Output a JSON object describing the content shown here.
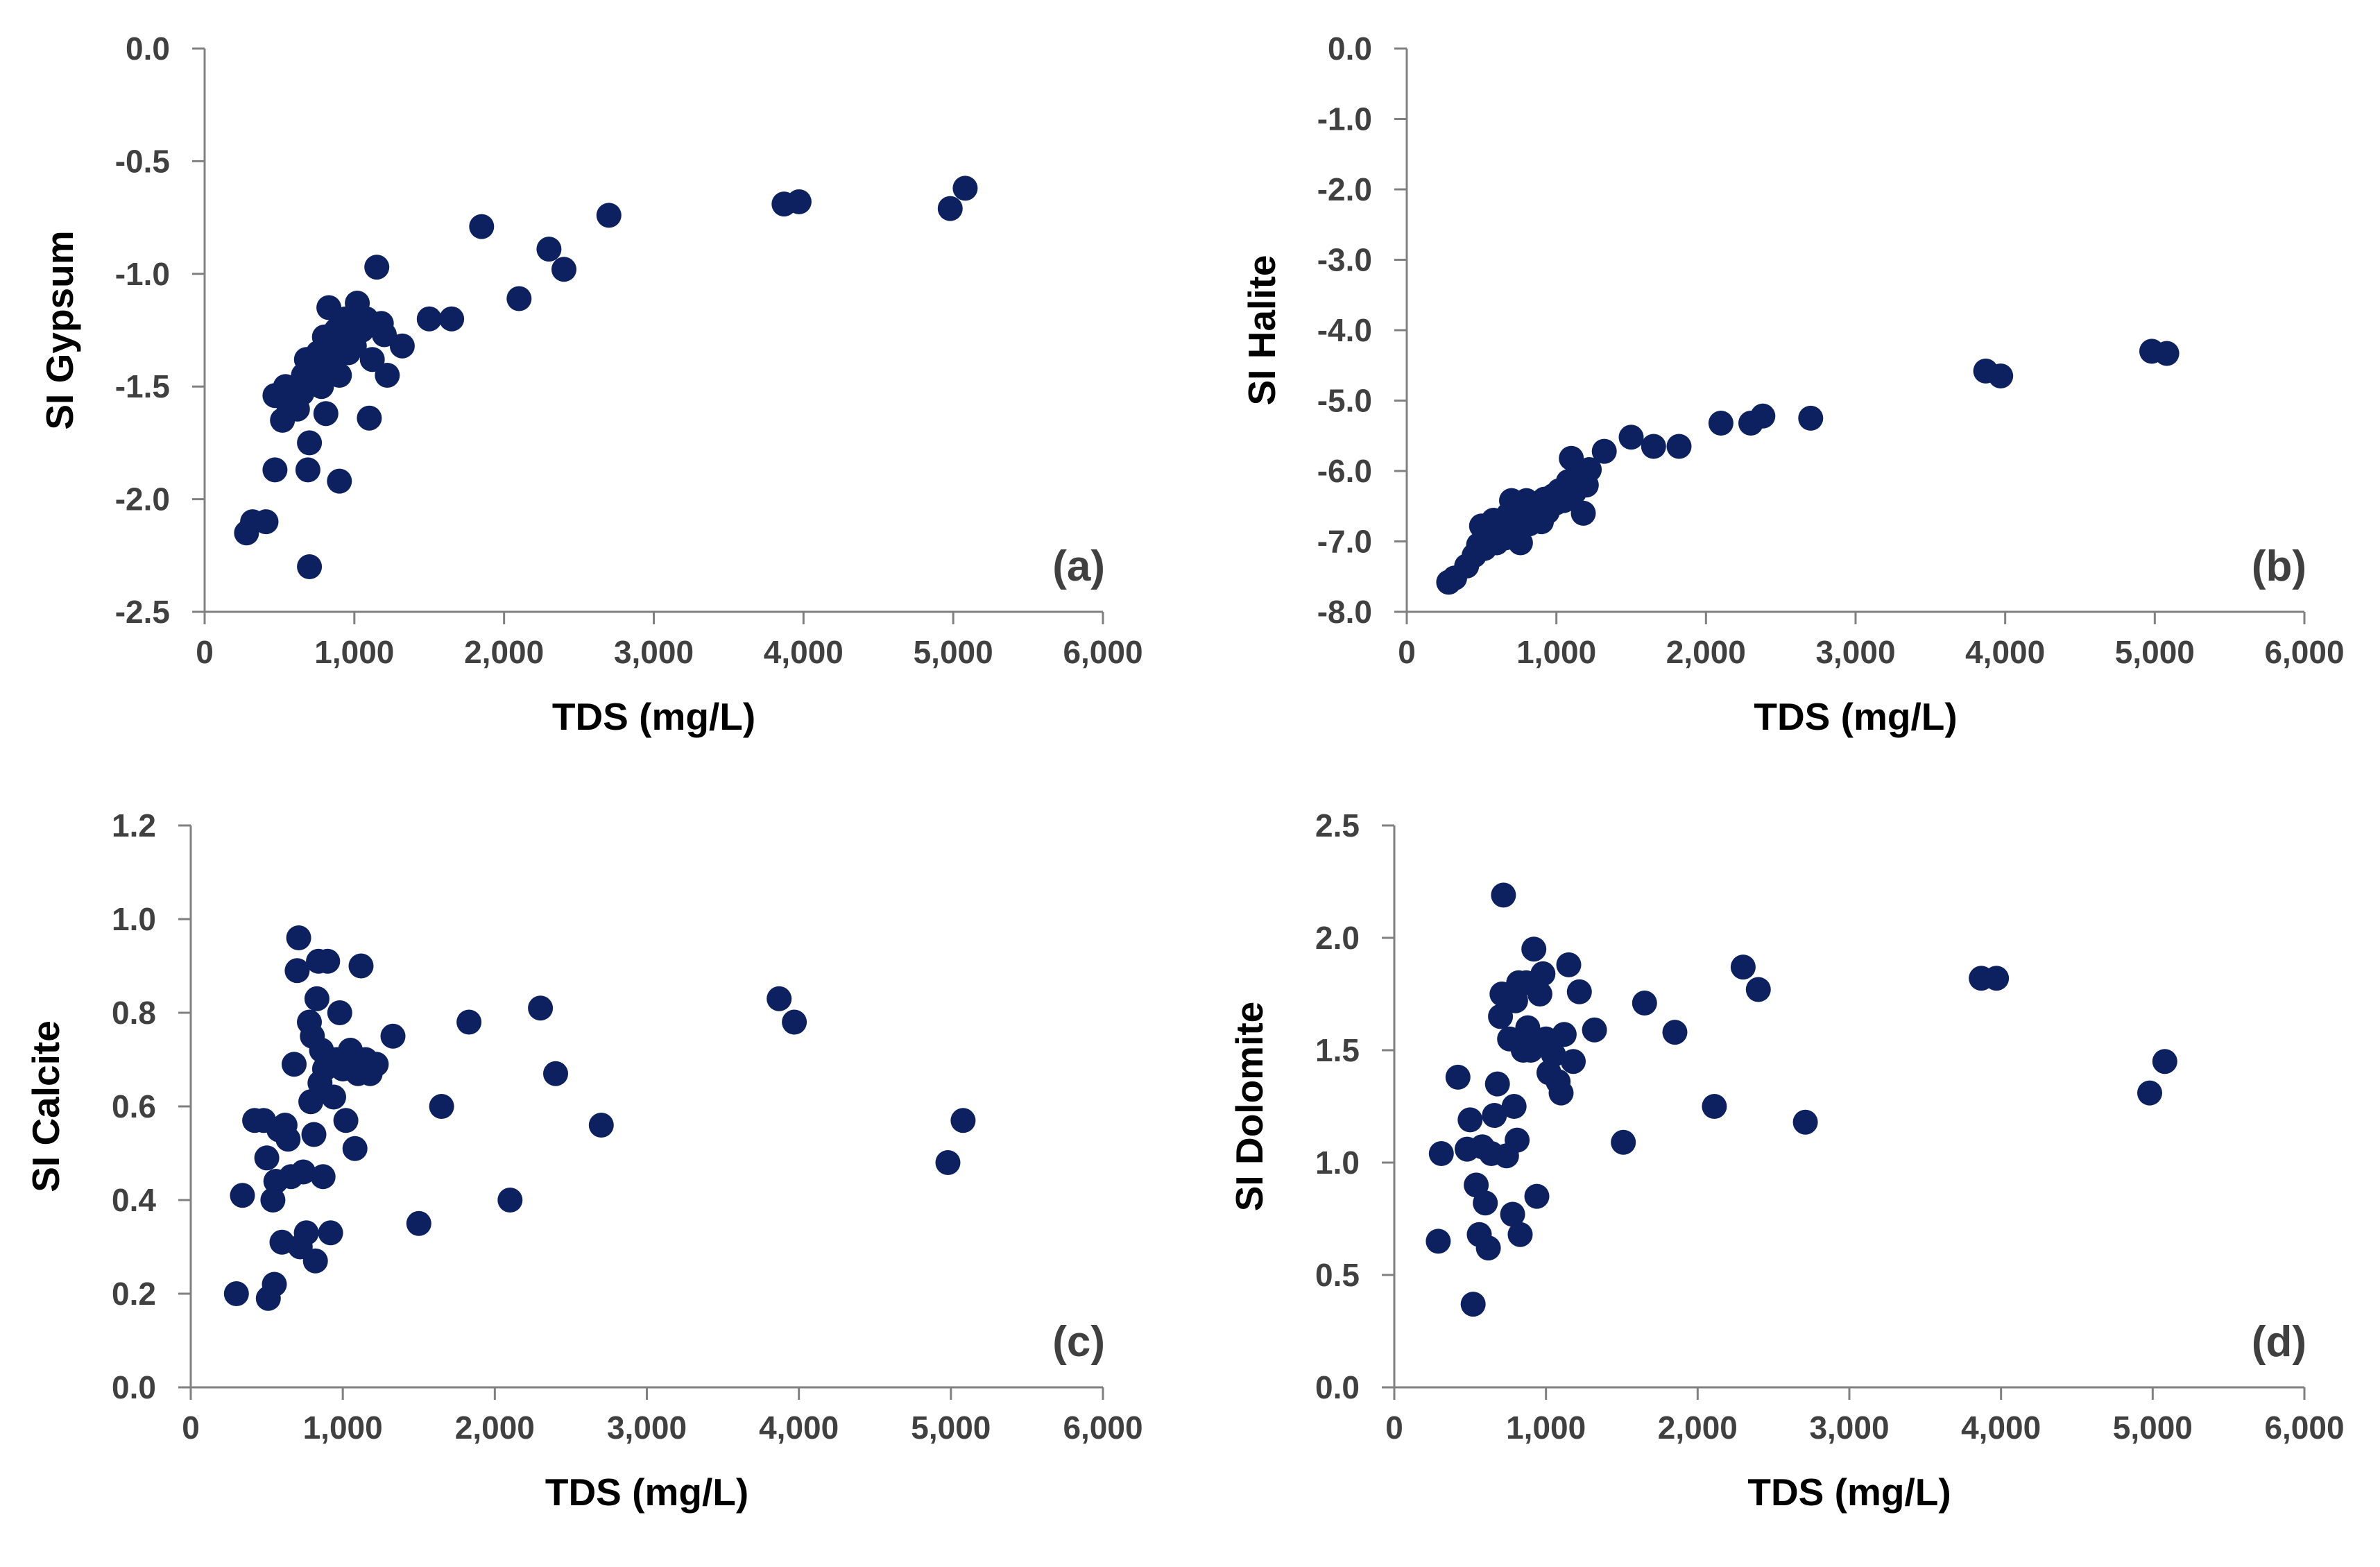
{
  "chart_data": [
    {
      "type": "scatter",
      "panel_label": "(a)",
      "xlabel": "TDS (mg/L)",
      "ylabel": "SI Gypsum",
      "xlim": [
        0,
        6000
      ],
      "ylim": [
        -2.5,
        0.0
      ],
      "xticks": [
        0,
        1000,
        2000,
        3000,
        4000,
        5000,
        6000
      ],
      "xtick_labels": [
        "0",
        "1,000",
        "2,000",
        "3,000",
        "4,000",
        "5,000",
        "6,000"
      ],
      "yticks": [
        0.0,
        -0.5,
        -1.0,
        -1.5,
        -2.0,
        -2.5
      ],
      "ytick_labels": [
        "0.0",
        "-0.5",
        "-1.0",
        "-1.5",
        "-2.0",
        "-2.5"
      ],
      "marker_color": "#0d2160",
      "points": [
        [
          280,
          -2.15
        ],
        [
          320,
          -2.1
        ],
        [
          410,
          -2.1
        ],
        [
          470,
          -1.87
        ],
        [
          470,
          -1.54
        ],
        [
          520,
          -1.65
        ],
        [
          540,
          -1.5
        ],
        [
          560,
          -1.58
        ],
        [
          600,
          -1.56
        ],
        [
          620,
          -1.6
        ],
        [
          650,
          -1.53
        ],
        [
          660,
          -1.45
        ],
        [
          680,
          -1.38
        ],
        [
          690,
          -1.87
        ],
        [
          700,
          -1.75
        ],
        [
          700,
          -2.3
        ],
        [
          720,
          -1.48
        ],
        [
          740,
          -1.42
        ],
        [
          760,
          -1.35
        ],
        [
          780,
          -1.5
        ],
        [
          800,
          -1.28
        ],
        [
          810,
          -1.62
        ],
        [
          820,
          -1.4
        ],
        [
          830,
          -1.15
        ],
        [
          850,
          -1.32
        ],
        [
          870,
          -1.38
        ],
        [
          880,
          -1.25
        ],
        [
          900,
          -1.45
        ],
        [
          900,
          -1.92
        ],
        [
          920,
          -1.3
        ],
        [
          940,
          -1.2
        ],
        [
          960,
          -1.35
        ],
        [
          980,
          -1.28
        ],
        [
          1000,
          -1.32
        ],
        [
          1020,
          -1.13
        ],
        [
          1050,
          -1.25
        ],
        [
          1080,
          -1.2
        ],
        [
          1100,
          -1.64
        ],
        [
          1120,
          -1.38
        ],
        [
          1150,
          -0.97
        ],
        [
          1180,
          -1.22
        ],
        [
          1200,
          -1.27
        ],
        [
          1220,
          -1.45
        ],
        [
          1320,
          -1.32
        ],
        [
          1500,
          -1.2
        ],
        [
          1650,
          -1.2
        ],
        [
          1850,
          -0.79
        ],
        [
          2100,
          -1.11
        ],
        [
          2300,
          -0.89
        ],
        [
          2400,
          -0.98
        ],
        [
          2700,
          -0.74
        ],
        [
          3870,
          -0.69
        ],
        [
          3970,
          -0.68
        ],
        [
          4980,
          -0.71
        ],
        [
          5080,
          -0.62
        ]
      ]
    },
    {
      "type": "scatter",
      "panel_label": "(b)",
      "xlabel": "TDS (mg/L)",
      "ylabel": "SI Halite",
      "xlim": [
        0,
        6000
      ],
      "ylim": [
        -8.0,
        0.0
      ],
      "xticks": [
        0,
        1000,
        2000,
        3000,
        4000,
        5000,
        6000
      ],
      "xtick_labels": [
        "0",
        "1,000",
        "2,000",
        "3,000",
        "4,000",
        "5,000",
        "6,000"
      ],
      "yticks": [
        0.0,
        -1.0,
        -2.0,
        -3.0,
        -4.0,
        -5.0,
        -6.0,
        -7.0,
        -8.0
      ],
      "ytick_labels": [
        "0.0",
        "-1.0",
        "-2.0",
        "-3.0",
        "-4.0",
        "-5.0",
        "-6.0",
        "-7.0",
        "-8.0"
      ],
      "marker_color": "#0d2160",
      "points": [
        [
          280,
          -7.58
        ],
        [
          320,
          -7.52
        ],
        [
          400,
          -7.35
        ],
        [
          450,
          -7.2
        ],
        [
          480,
          -7.05
        ],
        [
          500,
          -6.78
        ],
        [
          520,
          -7.1
        ],
        [
          560,
          -6.92
        ],
        [
          580,
          -6.7
        ],
        [
          600,
          -7.02
        ],
        [
          620,
          -6.88
        ],
        [
          640,
          -6.78
        ],
        [
          660,
          -6.95
        ],
        [
          680,
          -6.62
        ],
        [
          700,
          -6.42
        ],
        [
          720,
          -6.72
        ],
        [
          740,
          -6.85
        ],
        [
          760,
          -7.02
        ],
        [
          780,
          -6.55
        ],
        [
          800,
          -6.42
        ],
        [
          820,
          -6.75
        ],
        [
          840,
          -6.6
        ],
        [
          860,
          -6.68
        ],
        [
          880,
          -6.5
        ],
        [
          900,
          -6.72
        ],
        [
          920,
          -6.4
        ],
        [
          940,
          -6.58
        ],
        [
          960,
          -6.48
        ],
        [
          980,
          -6.35
        ],
        [
          1000,
          -6.45
        ],
        [
          1020,
          -6.28
        ],
        [
          1050,
          -6.42
        ],
        [
          1080,
          -6.15
        ],
        [
          1100,
          -5.82
        ],
        [
          1120,
          -6.3
        ],
        [
          1150,
          -6.05
        ],
        [
          1180,
          -6.6
        ],
        [
          1200,
          -6.2
        ],
        [
          1220,
          -5.98
        ],
        [
          1320,
          -5.72
        ],
        [
          1500,
          -5.52
        ],
        [
          1650,
          -5.65
        ],
        [
          1820,
          -5.65
        ],
        [
          2100,
          -5.32
        ],
        [
          2300,
          -5.32
        ],
        [
          2380,
          -5.22
        ],
        [
          2700,
          -5.25
        ],
        [
          3870,
          -4.58
        ],
        [
          3970,
          -4.65
        ],
        [
          4980,
          -4.3
        ],
        [
          5080,
          -4.33
        ]
      ]
    },
    {
      "type": "scatter",
      "panel_label": "(c)",
      "xlabel": "TDS (mg/L)",
      "ylabel": "SI Calcite",
      "xlim": [
        0,
        6000
      ],
      "ylim": [
        0.0,
        1.2
      ],
      "xticks": [
        0,
        1000,
        2000,
        3000,
        4000,
        5000,
        6000
      ],
      "xtick_labels": [
        "0",
        "1,000",
        "2,000",
        "3,000",
        "4,000",
        "5,000",
        "6,000"
      ],
      "yticks": [
        0.0,
        0.2,
        0.4,
        0.6,
        0.8,
        1.0,
        1.2
      ],
      "ytick_labels": [
        "0.0",
        "0.2",
        "0.4",
        "0.6",
        "0.8",
        "1.0",
        "1.2"
      ],
      "marker_color": "#0d2160",
      "points": [
        [
          300,
          0.2
        ],
        [
          340,
          0.41
        ],
        [
          420,
          0.57
        ],
        [
          480,
          0.57
        ],
        [
          500,
          0.49
        ],
        [
          510,
          0.19
        ],
        [
          540,
          0.4
        ],
        [
          550,
          0.22
        ],
        [
          560,
          0.44
        ],
        [
          580,
          0.55
        ],
        [
          600,
          0.31
        ],
        [
          620,
          0.56
        ],
        [
          640,
          0.53
        ],
        [
          660,
          0.45
        ],
        [
          680,
          0.69
        ],
        [
          700,
          0.89
        ],
        [
          710,
          0.96
        ],
        [
          720,
          0.3
        ],
        [
          740,
          0.46
        ],
        [
          760,
          0.33
        ],
        [
          780,
          0.78
        ],
        [
          790,
          0.61
        ],
        [
          800,
          0.75
        ],
        [
          810,
          0.54
        ],
        [
          820,
          0.27
        ],
        [
          830,
          0.83
        ],
        [
          840,
          0.91
        ],
        [
          850,
          0.65
        ],
        [
          860,
          0.72
        ],
        [
          870,
          0.45
        ],
        [
          880,
          0.68
        ],
        [
          900,
          0.91
        ],
        [
          920,
          0.33
        ],
        [
          940,
          0.62
        ],
        [
          960,
          0.7
        ],
        [
          980,
          0.8
        ],
        [
          1000,
          0.68
        ],
        [
          1020,
          0.57
        ],
        [
          1050,
          0.72
        ],
        [
          1080,
          0.51
        ],
        [
          1100,
          0.67
        ],
        [
          1120,
          0.9
        ],
        [
          1150,
          0.7
        ],
        [
          1180,
          0.67
        ],
        [
          1220,
          0.69
        ],
        [
          1330,
          0.75
        ],
        [
          1500,
          0.35
        ],
        [
          1650,
          0.6
        ],
        [
          1830,
          0.78
        ],
        [
          2100,
          0.4
        ],
        [
          2300,
          0.81
        ],
        [
          2400,
          0.67
        ],
        [
          2700,
          0.56
        ],
        [
          3870,
          0.83
        ],
        [
          3970,
          0.78
        ],
        [
          4980,
          0.48
        ],
        [
          5080,
          0.57
        ]
      ]
    },
    {
      "type": "scatter",
      "panel_label": "(d)",
      "xlabel": "TDS (mg/L)",
      "ylabel": "SI Dolomite",
      "xlim": [
        0,
        6000
      ],
      "ylim": [
        0.0,
        2.5
      ],
      "xticks": [
        0,
        1000,
        2000,
        3000,
        4000,
        5000,
        6000
      ],
      "xtick_labels": [
        "0",
        "1,000",
        "2,000",
        "3,000",
        "4,000",
        "5,000",
        "6,000"
      ],
      "yticks": [
        0.0,
        0.5,
        1.0,
        1.5,
        2.0,
        2.5
      ],
      "ytick_labels": [
        "0.0",
        "0.5",
        "1.0",
        "1.5",
        "2.0",
        "2.5"
      ],
      "marker_color": "#0d2160",
      "points": [
        [
          290,
          0.65
        ],
        [
          310,
          1.04
        ],
        [
          420,
          1.38
        ],
        [
          480,
          1.06
        ],
        [
          500,
          1.19
        ],
        [
          520,
          0.37
        ],
        [
          540,
          0.9
        ],
        [
          560,
          0.68
        ],
        [
          580,
          1.07
        ],
        [
          600,
          0.82
        ],
        [
          620,
          0.62
        ],
        [
          640,
          1.04
        ],
        [
          660,
          1.21
        ],
        [
          680,
          1.35
        ],
        [
          700,
          1.65
        ],
        [
          710,
          1.75
        ],
        [
          720,
          2.19
        ],
        [
          740,
          1.03
        ],
        [
          760,
          1.55
        ],
        [
          780,
          0.77
        ],
        [
          790,
          1.25
        ],
        [
          800,
          1.72
        ],
        [
          810,
          1.1
        ],
        [
          820,
          1.8
        ],
        [
          830,
          0.68
        ],
        [
          850,
          1.5
        ],
        [
          870,
          1.8
        ],
        [
          880,
          1.6
        ],
        [
          900,
          1.5
        ],
        [
          920,
          1.95
        ],
        [
          940,
          0.85
        ],
        [
          960,
          1.75
        ],
        [
          980,
          1.84
        ],
        [
          1000,
          1.55
        ],
        [
          1020,
          1.4
        ],
        [
          1050,
          1.48
        ],
        [
          1080,
          1.36
        ],
        [
          1100,
          1.31
        ],
        [
          1120,
          1.57
        ],
        [
          1150,
          1.88
        ],
        [
          1180,
          1.45
        ],
        [
          1220,
          1.76
        ],
        [
          1320,
          1.59
        ],
        [
          1510,
          1.09
        ],
        [
          1650,
          1.71
        ],
        [
          1850,
          1.58
        ],
        [
          2110,
          1.25
        ],
        [
          2300,
          1.87
        ],
        [
          2400,
          1.77
        ],
        [
          2710,
          1.18
        ],
        [
          3870,
          1.82
        ],
        [
          3970,
          1.82
        ],
        [
          4980,
          1.31
        ],
        [
          5080,
          1.45
        ]
      ]
    }
  ]
}
